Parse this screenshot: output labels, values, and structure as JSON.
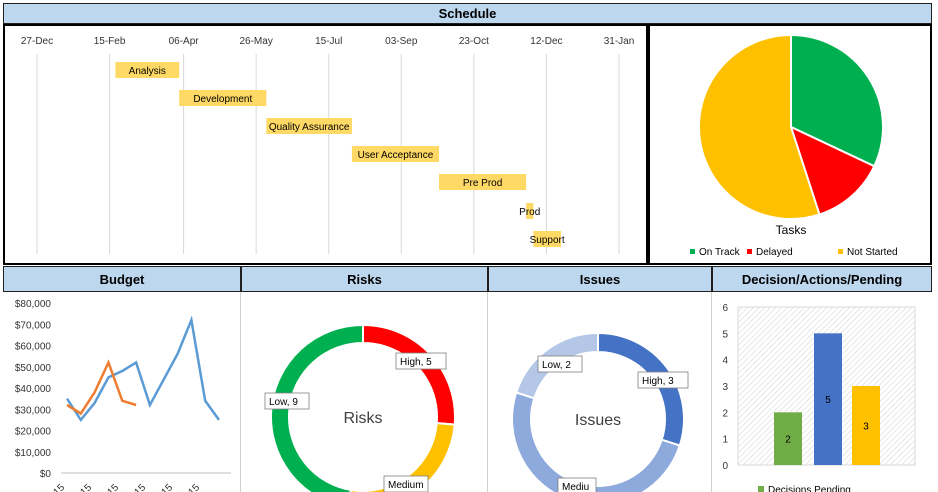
{
  "headers": {
    "schedule": "Schedule",
    "budget": "Budget",
    "risks": "Risks",
    "issues": "Issues",
    "decisions": "Decision/Actions/Pending"
  },
  "colors": {
    "header_bg": "#bdd7ee",
    "gantt_bar": "#ffd966",
    "green": "#00b050",
    "red": "#ff0000",
    "yellow": "#ffc000",
    "blue_dark": "#4472c4",
    "blue_mid": "#8ea9db",
    "blue_light": "#b4c7e7",
    "budget_blue": "#5b9bd5",
    "budget_orange": "#ed7d31",
    "bar_green": "#70ad47",
    "bar_blue": "#4472c4",
    "bar_yellow": "#ffc000"
  },
  "chart_data": [
    {
      "id": "schedule",
      "type": "bar",
      "orientation": "horizontal-gantt",
      "x_tick_labels": [
        "27-Dec",
        "15-Feb",
        "06-Apr",
        "26-May",
        "15-Jul",
        "03-Sep",
        "23-Oct",
        "12-Dec",
        "31-Jan"
      ],
      "x_ticks": [
        "2019-12-27",
        "2020-02-15",
        "2020-04-06",
        "2020-05-26",
        "2020-07-15",
        "2020-09-03",
        "2020-10-23",
        "2020-12-12",
        "2021-01-31"
      ],
      "tasks": [
        {
          "label": "Analysis",
          "start": "2020-02-19",
          "end": "2020-04-03"
        },
        {
          "label": "Development",
          "start": "2020-04-03",
          "end": "2020-06-02"
        },
        {
          "label": "Quality Assurance",
          "start": "2020-06-02",
          "end": "2020-07-31"
        },
        {
          "label": "User Acceptance",
          "start": "2020-07-31",
          "end": "2020-09-29"
        },
        {
          "label": "Pre Prod",
          "start": "2020-09-29",
          "end": "2020-11-28"
        },
        {
          "label": "Prod",
          "start": "2020-11-28",
          "end": "2020-12-03"
        },
        {
          "label": "Support",
          "start": "2020-12-03",
          "end": "2020-12-22"
        }
      ]
    },
    {
      "id": "tasks",
      "type": "pie",
      "title": "Tasks",
      "slices": [
        {
          "name": "On Track",
          "value": 32,
          "color": "#00b050"
        },
        {
          "name": "Delayed",
          "value": 13,
          "color": "#ff0000"
        },
        {
          "name": "Not Started",
          "value": 55,
          "color": "#ffc000"
        }
      ],
      "legend": "bottom"
    },
    {
      "id": "budget",
      "type": "line",
      "y_tick_labels": [
        "$0",
        "$10,000",
        "$20,000",
        "$30,000",
        "$40,000",
        "$50,000",
        "$60,000",
        "$70,000",
        "$80,000"
      ],
      "ylim": [
        0,
        80000
      ],
      "x_tick_labels": [
        "15",
        "15",
        "15",
        "15",
        "15",
        "15"
      ],
      "series": [
        {
          "values": [
            35000,
            25000,
            33000,
            45000,
            48000,
            52000,
            32000,
            44000,
            56000,
            72000,
            34000,
            25000
          ],
          "color": "#5b9bd5"
        },
        {
          "values": [
            32000,
            28000,
            38000,
            52000,
            34000,
            32000
          ],
          "color": "#ed7d31"
        }
      ]
    },
    {
      "id": "risks",
      "type": "pie",
      "donut": true,
      "center_label": "Risks",
      "slices": [
        {
          "label": "High, 5",
          "value": 5,
          "color": "#ff0000"
        },
        {
          "label": "Medium",
          "value": 5,
          "color": "#ffc000"
        },
        {
          "label": "Low, 9",
          "value": 9,
          "color": "#00b050"
        }
      ],
      "start_order": [
        "High, 5",
        "Medium",
        "Low, 9"
      ]
    },
    {
      "id": "issues",
      "type": "pie",
      "donut": true,
      "center_label": "Issues",
      "slices": [
        {
          "label": "High, 3",
          "value": 3,
          "color": "#4472c4"
        },
        {
          "label": "Mediu",
          "value": 5,
          "color": "#8ea9db"
        },
        {
          "label": "Low, 2",
          "value": 2,
          "color": "#b4c7e7"
        }
      ]
    },
    {
      "id": "decisions",
      "type": "bar",
      "y_tick_labels": [
        "0",
        "1",
        "2",
        "3",
        "4",
        "5",
        "6"
      ],
      "ylim": [
        0,
        6
      ],
      "series": [
        {
          "value": 2,
          "color": "#70ad47"
        },
        {
          "value": 5,
          "color": "#4472c4"
        },
        {
          "value": 3,
          "color": "#ffc000"
        }
      ],
      "legend": "Decisions Pending"
    }
  ]
}
